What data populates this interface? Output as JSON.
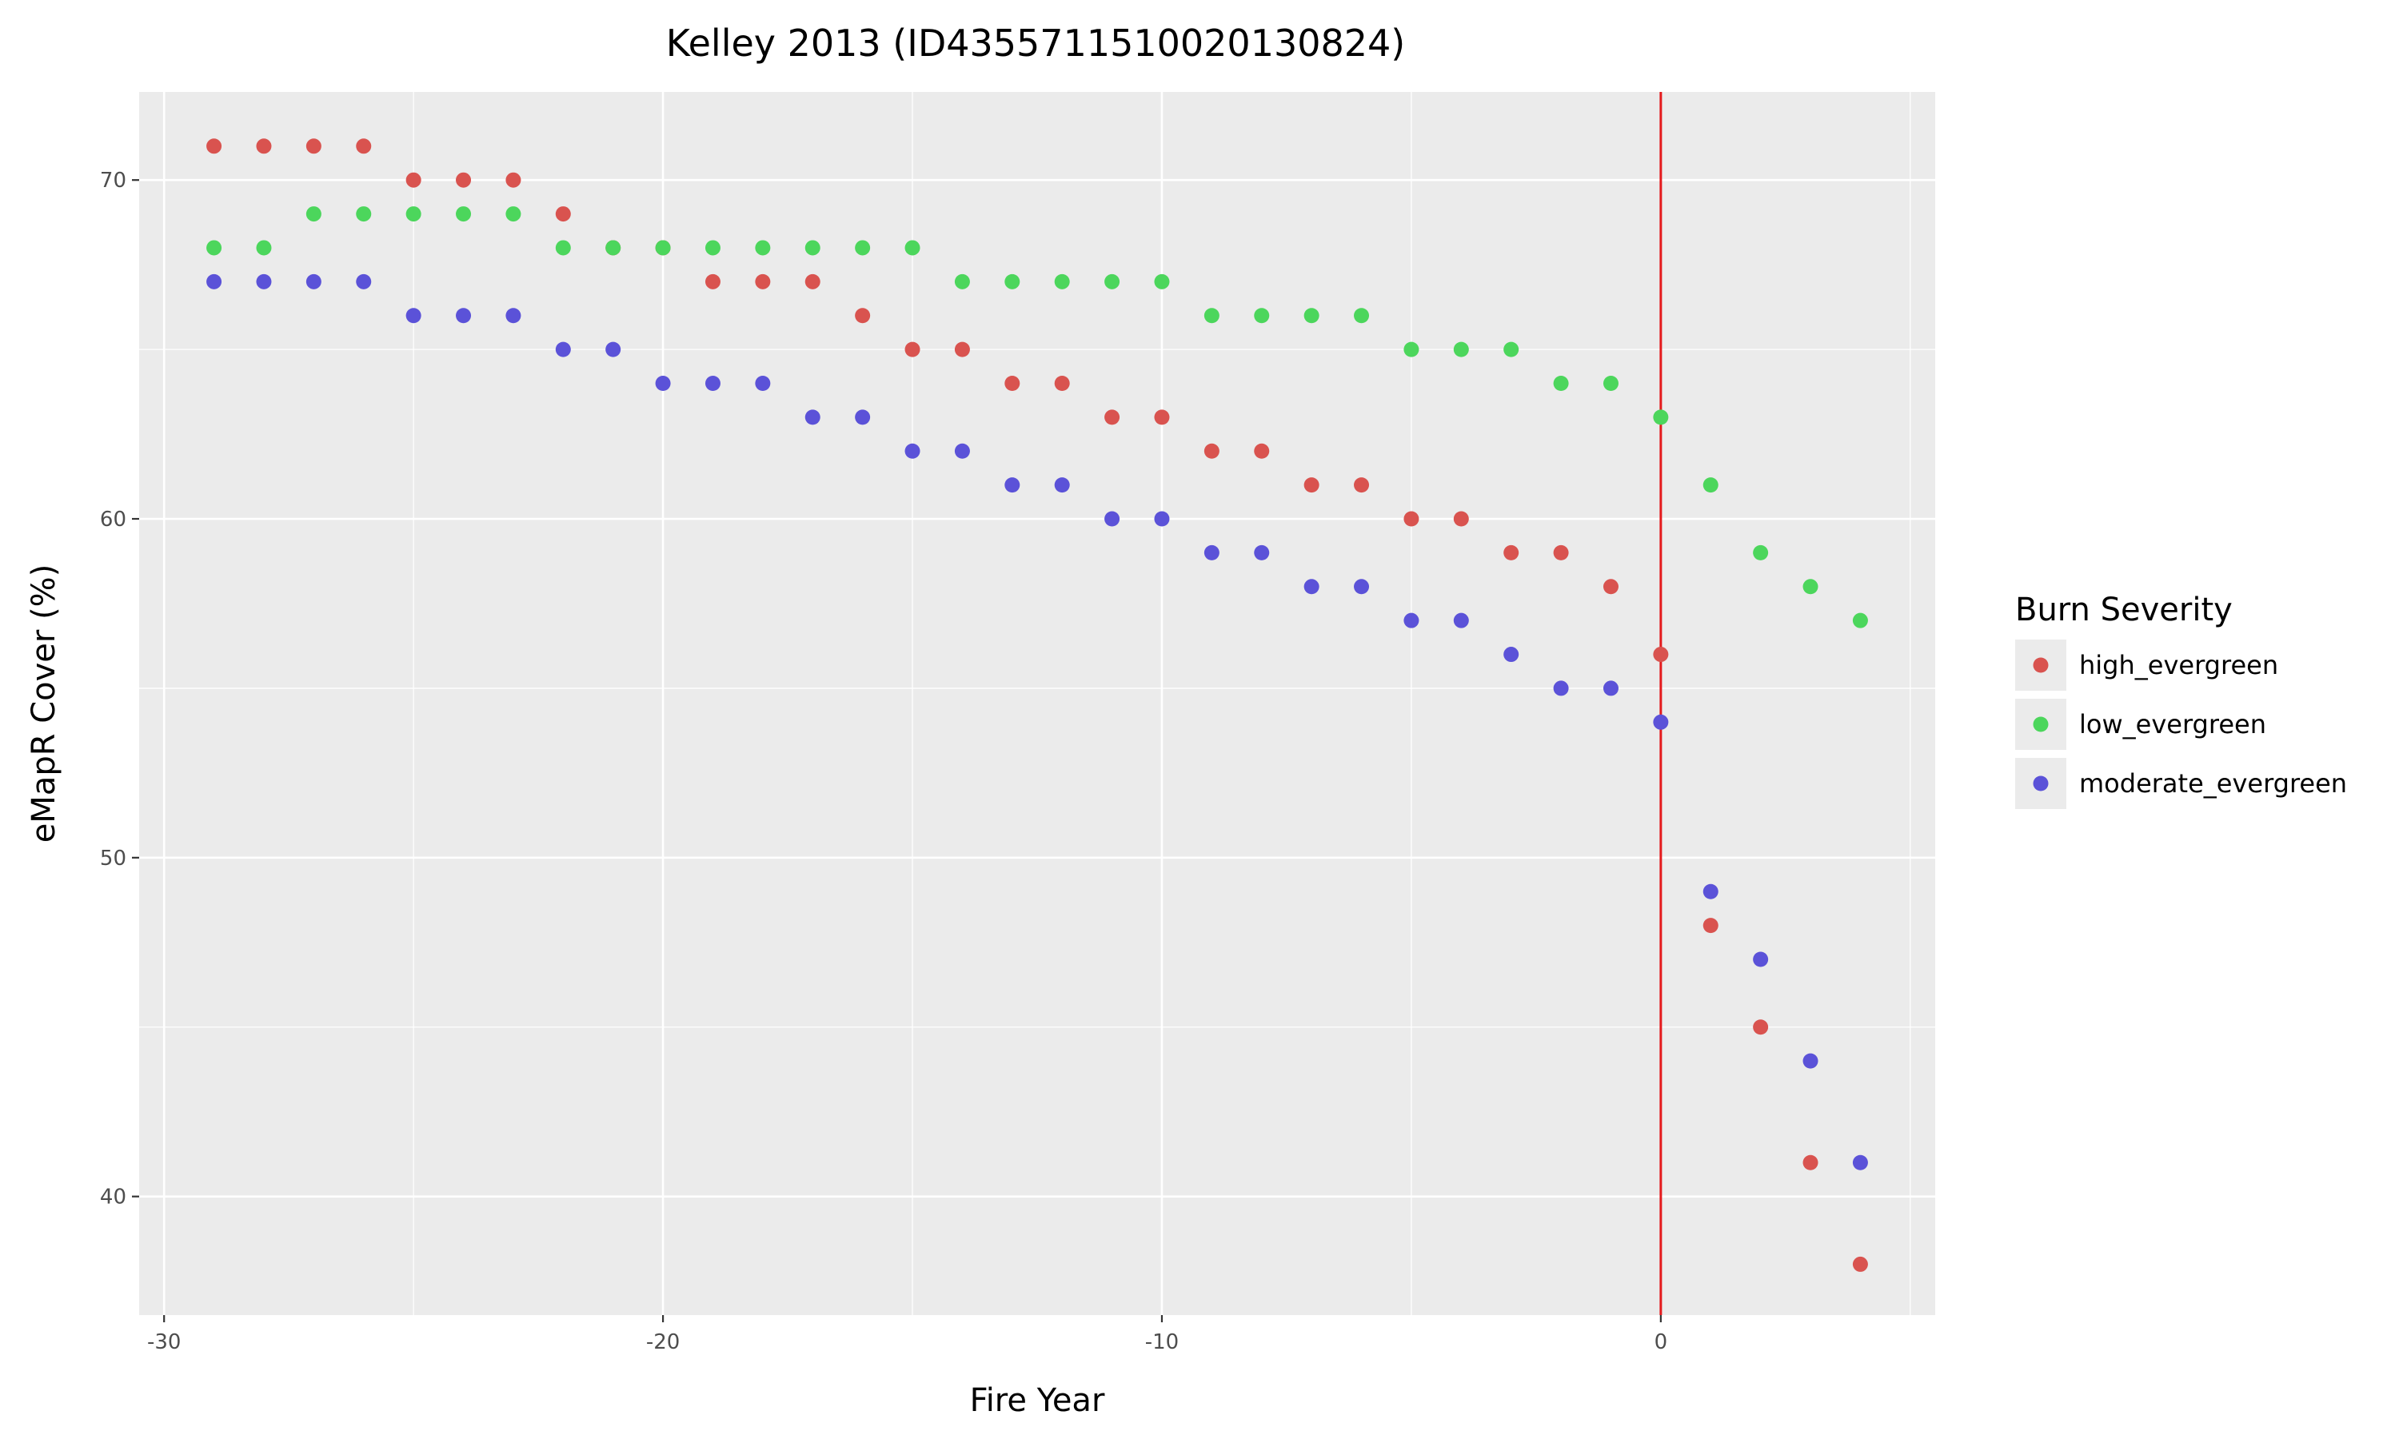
{
  "chart_data": {
    "type": "scatter",
    "title": "Kelley 2013 (ID43557115100201308​24)",
    "xlabel": "Fire Year",
    "ylabel": "eMapR Cover (%)",
    "xlim": [
      -30.5,
      5.5
    ],
    "ylim": [
      36.5,
      72.6
    ],
    "x_ticks": [
      -30,
      -20,
      -10,
      0
    ],
    "x_tick_labels": [
      "-30",
      "-20",
      "-10",
      "0"
    ],
    "y_ticks": [
      40,
      50,
      60,
      70
    ],
    "y_tick_labels": [
      "40",
      "50",
      "60",
      "70"
    ],
    "grid": true,
    "legend": {
      "title": "Burn Severity",
      "position": "right"
    },
    "reference_line": {
      "orientation": "vertical",
      "x": 0,
      "color": "#e41a1c"
    },
    "x": [
      -29,
      -28,
      -27,
      -26,
      -25,
      -24,
      -23,
      -22,
      -21,
      -20,
      -19,
      -18,
      -17,
      -16,
      -15,
      -14,
      -13,
      -12,
      -11,
      -10,
      -9,
      -8,
      -7,
      -6,
      -5,
      -4,
      -3,
      -2,
      -1,
      0,
      1,
      2,
      3,
      4
    ],
    "series": [
      {
        "name": "high_evergreen",
        "color": "#d9534f",
        "values": [
          71,
          71,
          71,
          71,
          70,
          70,
          70,
          69,
          68,
          68,
          67,
          67,
          67,
          66,
          65,
          65,
          64,
          64,
          63,
          63,
          62,
          62,
          61,
          61,
          60,
          60,
          59,
          59,
          58,
          56,
          48,
          45,
          41,
          38
        ]
      },
      {
        "name": "low_evergreen",
        "color": "#4cd65c",
        "values": [
          68,
          68,
          69,
          69,
          69,
          69,
          69,
          68,
          68,
          68,
          68,
          68,
          68,
          68,
          68,
          67,
          67,
          67,
          67,
          67,
          66,
          66,
          66,
          66,
          65,
          65,
          65,
          64,
          64,
          63,
          61,
          59,
          58,
          57
        ]
      },
      {
        "name": "moderate_evergreen",
        "color": "#5b52d8",
        "values": [
          67,
          67,
          67,
          67,
          66,
          66,
          66,
          65,
          65,
          64,
          64,
          64,
          63,
          63,
          62,
          62,
          61,
          61,
          60,
          60,
          59,
          59,
          58,
          58,
          57,
          57,
          56,
          55,
          55,
          54,
          49,
          47,
          44,
          41
        ]
      }
    ]
  }
}
